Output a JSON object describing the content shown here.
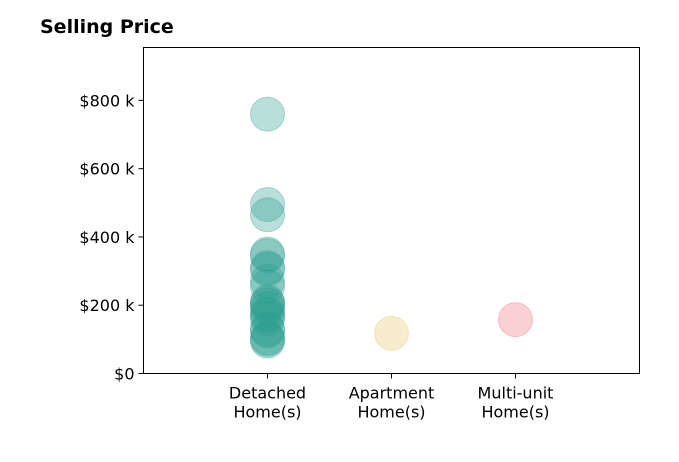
{
  "chart_data": {
    "type": "scatter",
    "title": "Selling Price",
    "xlabel": "",
    "ylabel": "",
    "categories": [
      [
        "Detached",
        "Home(s)"
      ],
      [
        "Apartment",
        "Home(s)"
      ],
      [
        "Multi-unit",
        "Home(s)"
      ]
    ],
    "y_ticks": [
      {
        "value": 0,
        "label": "$0"
      },
      {
        "value": 200000,
        "label": "$200 k"
      },
      {
        "value": 400000,
        "label": "$400 k"
      },
      {
        "value": 600000,
        "label": "$600 k"
      },
      {
        "value": 800000,
        "label": "$800 k"
      }
    ],
    "ylim": [
      0,
      955000
    ],
    "xlim": [
      -1,
      3
    ],
    "grid": false,
    "series": [
      {
        "category_index": 0,
        "color": "#2a9d8f",
        "values": [
          760000,
          495000,
          465000,
          350000,
          345000,
          310000,
          305000,
          270000,
          255000,
          210000,
          205000,
          200000,
          190000,
          175000,
          170000,
          160000,
          130000,
          125000,
          105000,
          100000,
          95000
        ]
      },
      {
        "category_index": 1,
        "color": "#e9c46a",
        "values": [
          118000
        ]
      },
      {
        "category_index": 2,
        "color": "#ef6f7a",
        "values": [
          158000
        ]
      }
    ]
  }
}
